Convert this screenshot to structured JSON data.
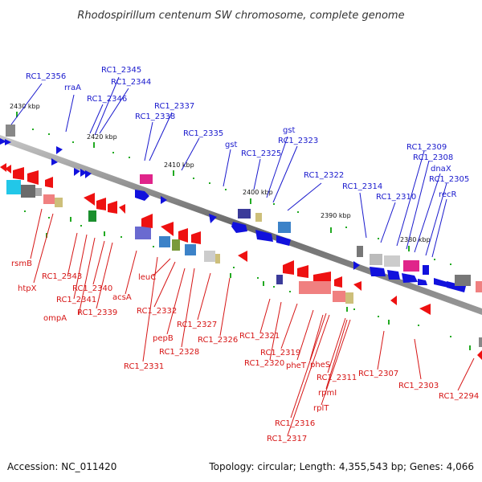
{
  "title": "Rhodospirillum centenum SW chromosome, complete genome",
  "footer": {
    "accession": "Accession: NC_011420",
    "topology": "Topology: circular; Length: 4,355,543 bp; Genes: 4,066"
  },
  "ticks": [
    "2430 kbp",
    "2420 kbp",
    "2410 kbp",
    "2400 kbp",
    "2390 kbp",
    "2380 kbp"
  ],
  "genes_top": [
    "RC1_2356",
    "rraA",
    "RC1_2345",
    "RC1_2344",
    "RC1_2346",
    "RC1_2337",
    "RC1_2338",
    "RC1_2335",
    "gst",
    "gst",
    "RC1_2325",
    "RC1_2323",
    "RC1_2322",
    "RC1_2314",
    "RC1_2310",
    "RC1_2309",
    "RC1_2308",
    "dnaX",
    "RC1_2305",
    "recR"
  ],
  "genes_bottom": [
    "rsmB",
    "htpX",
    "RC1_2343",
    "RC1_2341",
    "ompA",
    "RC1_2340",
    "RC1_2339",
    "acsA",
    "leuC",
    "RC1_2332",
    "pepB",
    "RC1_2331",
    "RC1_2328",
    "RC1_2327",
    "RC1_2326",
    "RC1_2321",
    "RC1_2320",
    "RC1_2319",
    "pheT",
    "pheS",
    "RC1_2311",
    "rpmI",
    "rplT",
    "RC1_2316",
    "RC1_2317",
    "RC1_2307",
    "RC1_2303",
    "RC1_2294"
  ],
  "colors": {
    "forward_strand": "#1111dd",
    "reverse_strand": "#ee1111",
    "backbone": "#777777",
    "tick_mark": "#22aa22",
    "label_top": "#1a1acd",
    "label_bottom": "#d61515"
  }
}
